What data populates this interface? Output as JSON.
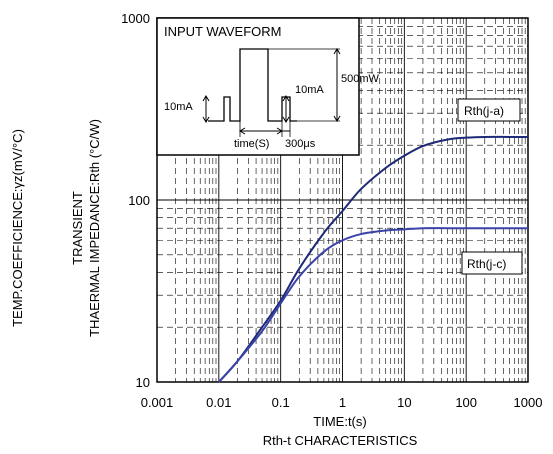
{
  "chart_data": {
    "type": "line",
    "caption": "Rth-t CHARACTERISTICS",
    "xlabel": "TIME:t(s)",
    "ylabel_lines": [
      "TRANSIENT",
      "THAERMAL IMPEDANCE:Rth (°C/W)"
    ],
    "ylabel_secondary": "TEMP.COEFFICIENCE:γz(mV/°C)",
    "x_scale": "log",
    "y_scale": "log",
    "xlim": [
      0.001,
      1000
    ],
    "ylim": [
      10,
      1000
    ],
    "x_ticks": [
      "0.001",
      "0.01",
      "0.1",
      "1",
      "10",
      "100",
      "1000"
    ],
    "y_ticks": [
      "10",
      "100",
      "1000"
    ],
    "grid": "dashed",
    "series": [
      {
        "name": "Rth(j-a)",
        "color": "#1e2a78",
        "x": [
          0.01,
          0.02,
          0.05,
          0.1,
          0.2,
          0.5,
          1,
          2,
          5,
          10,
          20,
          50,
          100,
          200,
          500,
          1000
        ],
        "y": [
          10,
          13,
          20,
          28,
          42,
          66,
          87,
          115,
          150,
          175,
          198,
          215,
          220,
          222,
          222,
          222
        ]
      },
      {
        "name": "Rth(j-c)",
        "color": "#3a43a8",
        "x": [
          0.01,
          0.02,
          0.05,
          0.1,
          0.2,
          0.5,
          1,
          2,
          5,
          10,
          20,
          50,
          100,
          200,
          500,
          1000
        ],
        "y": [
          10,
          13,
          19,
          27,
          38,
          52,
          60,
          65,
          68,
          69,
          70,
          70,
          70,
          70,
          70,
          70
        ]
      }
    ],
    "inset": {
      "title": "INPUT WAVEFORM",
      "label_left_pulse": "10mA",
      "label_right_pulse": "10mA",
      "label_amplitude": "500mW",
      "label_time": "time(S)",
      "label_width": "300μs"
    }
  }
}
